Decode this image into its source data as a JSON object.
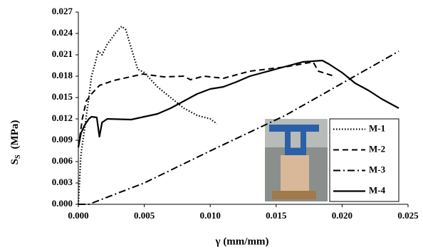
{
  "chart_data": {
    "type": "line",
    "x_label": "γ  (mm/mm)",
    "y_label": {
      "main": "S",
      "sub": "S",
      "unit": "(MPa)"
    },
    "xlim": [
      0,
      0.025
    ],
    "ylim": [
      0,
      0.027
    ],
    "xticks": [
      {
        "value": 0,
        "label": "0.000"
      },
      0.005,
      {
        "value": 0.01,
        "label": "0.010"
      },
      0.015,
      {
        "value": 0.02,
        "label": "0.020"
      },
      0.025
    ],
    "yticks": [
      {
        "value": 0,
        "label": "0.000"
      },
      0.003,
      0.006,
      0.009,
      0.012,
      0.015,
      0.018,
      0.021,
      0.024,
      0.027
    ],
    "grid": false,
    "legend": "right",
    "series": [
      {
        "name": "M-1",
        "color": "#000000",
        "style": "dotted",
        "x": [
          0,
          0.0002,
          0.0005,
          0.0008,
          0.001,
          0.0013,
          0.0015,
          0.0018,
          0.0022,
          0.0026,
          0.003,
          0.0033,
          0.0036,
          0.004,
          0.0045,
          0.005,
          0.006,
          0.007,
          0.008,
          0.009,
          0.01,
          0.0105
        ],
        "values": [
          0,
          0.007,
          0.011,
          0.015,
          0.018,
          0.02,
          0.0215,
          0.021,
          0.0225,
          0.0235,
          0.0245,
          0.025,
          0.0245,
          0.022,
          0.019,
          0.0185,
          0.0165,
          0.015,
          0.0135,
          0.0125,
          0.012,
          0.0113
        ]
      },
      {
        "name": "M-2",
        "color": "#000000",
        "style": "dashed",
        "x": [
          0,
          0.0003,
          0.0006,
          0.001,
          0.0016,
          0.0027,
          0.0049,
          0.0065,
          0.008,
          0.0085,
          0.0095,
          0.011,
          0.013,
          0.0157,
          0.0178,
          0.0182,
          0.0194
        ],
        "values": [
          0.008,
          0.012,
          0.0145,
          0.0155,
          0.0167,
          0.0174,
          0.0183,
          0.0179,
          0.018,
          0.0175,
          0.018,
          0.0177,
          0.0187,
          0.0193,
          0.02,
          0.0187,
          0.018
        ]
      },
      {
        "name": "M-3",
        "color": "#000000",
        "style": "dashdot",
        "x": [
          0,
          0.0008,
          0.005,
          0.01,
          0.0157,
          0.02,
          0.0243
        ],
        "values": [
          0,
          0,
          0.003,
          0.0075,
          0.0125,
          0.017,
          0.0215
        ]
      },
      {
        "name": "M-4",
        "color": "#000000",
        "style": "solid",
        "x": [
          0,
          0.0002,
          0.0005,
          0.0008,
          0.001,
          0.0014,
          0.0016,
          0.0018,
          0.0022,
          0.004,
          0.005,
          0.006,
          0.007,
          0.008,
          0.009,
          0.01,
          0.011,
          0.012,
          0.013,
          0.014,
          0.015,
          0.016,
          0.017,
          0.0185,
          0.019,
          0.02,
          0.021,
          0.022,
          0.023,
          0.0243
        ],
        "values": [
          0.008,
          0.01,
          0.0112,
          0.012,
          0.0123,
          0.0122,
          0.0095,
          0.0115,
          0.012,
          0.0119,
          0.0123,
          0.0127,
          0.0135,
          0.0145,
          0.0155,
          0.0162,
          0.0165,
          0.0172,
          0.018,
          0.0185,
          0.019,
          0.0195,
          0.02,
          0.0202,
          0.0197,
          0.0185,
          0.017,
          0.016,
          0.0148,
          0.0135
        ]
      }
    ]
  }
}
